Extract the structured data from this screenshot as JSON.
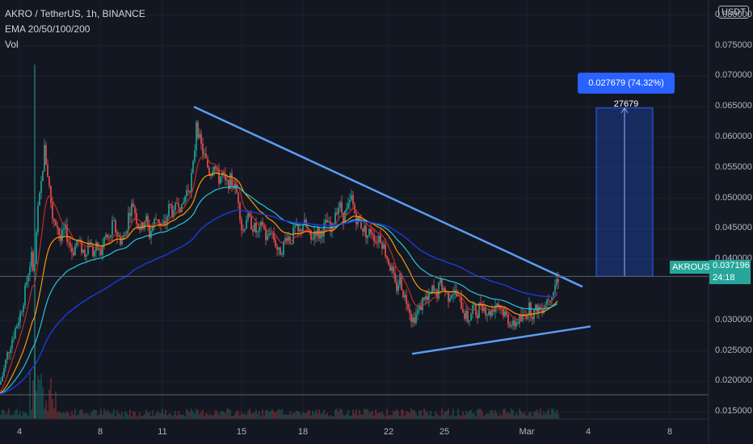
{
  "legend": {
    "symbol_line": "AKRO / TetherUS, 1h, BINANCE",
    "indicator_line": "EMA 20/50/100/200",
    "volume_line": "Vol"
  },
  "price_axis": {
    "currency": "USDT",
    "labels": [
      "0.080000",
      "0.075000",
      "0.070000",
      "0.065000",
      "0.060000",
      "0.055000",
      "0.050000",
      "0.045000",
      "0.040000",
      "0.030000",
      "0.025000",
      "0.020000",
      "0.015000"
    ]
  },
  "time_axis": {
    "labels": [
      "4",
      "8",
      "11",
      "15",
      "18",
      "22",
      "25",
      "Mar",
      "4",
      "8"
    ]
  },
  "last_price": {
    "symbol": "AKROUSDT",
    "value": "0.037196",
    "countdown": "24:18",
    "color": "#26a69a"
  },
  "measure": {
    "label": "0.027679 (74.32%) 27679",
    "color": "#2962ff"
  },
  "colors": {
    "background": "#131722",
    "up": "#26a69a",
    "down": "#ef5350",
    "trendline": "#5b9cf6",
    "ema20": "#c62828",
    "ema50": "#ff9800",
    "ema100": "#26c6da",
    "ema200": "#1e3ad8"
  },
  "chart_data": {
    "type": "candlestick",
    "title": "AKRO / TetherUS, 1h, BINANCE",
    "indicators": [
      "EMA 20/50/100/200",
      "Vol"
    ],
    "x_ticks": [
      "4",
      "8",
      "11",
      "15",
      "18",
      "22",
      "25",
      "Mar",
      "4",
      "8"
    ],
    "ylim": [
      0.0125,
      0.0825
    ],
    "y_scale": "linear",
    "close_path": [
      [
        0,
        0.0195
      ],
      [
        5,
        0.022
      ],
      [
        10,
        0.025
      ],
      [
        15,
        0.027
      ],
      [
        20,
        0.029
      ],
      [
        25,
        0.031
      ],
      [
        30,
        0.034
      ],
      [
        35,
        0.038
      ],
      [
        40,
        0.041
      ],
      [
        42,
        0.036
      ],
      [
        46,
        0.047
      ],
      [
        50,
        0.051
      ],
      [
        55,
        0.058
      ],
      [
        60,
        0.053
      ],
      [
        65,
        0.047
      ],
      [
        70,
        0.046
      ],
      [
        75,
        0.043
      ],
      [
        80,
        0.045
      ],
      [
        85,
        0.043
      ],
      [
        90,
        0.041
      ],
      [
        95,
        0.043
      ],
      [
        100,
        0.042
      ],
      [
        105,
        0.041
      ],
      [
        110,
        0.043
      ],
      [
        115,
        0.041
      ],
      [
        120,
        0.042
      ],
      [
        125,
        0.041
      ],
      [
        130,
        0.044
      ],
      [
        135,
        0.043
      ],
      [
        140,
        0.046
      ],
      [
        145,
        0.044
      ],
      [
        150,
        0.043
      ],
      [
        155,
        0.044
      ],
      [
        160,
        0.048
      ],
      [
        165,
        0.049
      ],
      [
        170,
        0.046
      ],
      [
        175,
        0.045
      ],
      [
        180,
        0.047
      ],
      [
        185,
        0.044
      ],
      [
        190,
        0.046
      ],
      [
        195,
        0.047
      ],
      [
        200,
        0.045
      ],
      [
        205,
        0.046
      ],
      [
        210,
        0.049
      ],
      [
        215,
        0.047
      ],
      [
        220,
        0.05
      ],
      [
        225,
        0.048
      ],
      [
        230,
        0.051
      ],
      [
        235,
        0.052
      ],
      [
        240,
        0.056
      ],
      [
        243,
        0.063
      ],
      [
        246,
        0.06
      ],
      [
        250,
        0.058
      ],
      [
        255,
        0.056
      ],
      [
        260,
        0.054
      ],
      [
        265,
        0.056
      ],
      [
        270,
        0.053
      ],
      [
        275,
        0.054
      ],
      [
        280,
        0.052
      ],
      [
        285,
        0.053
      ],
      [
        290,
        0.052
      ],
      [
        295,
        0.05
      ],
      [
        300,
        0.044
      ],
      [
        305,
        0.047
      ],
      [
        310,
        0.046
      ],
      [
        315,
        0.045
      ],
      [
        320,
        0.044
      ],
      [
        325,
        0.046
      ],
      [
        330,
        0.043
      ],
      [
        335,
        0.045
      ],
      [
        340,
        0.043
      ],
      [
        345,
        0.041
      ],
      [
        350,
        0.042
      ],
      [
        355,
        0.044
      ],
      [
        360,
        0.043
      ],
      [
        365,
        0.045
      ],
      [
        370,
        0.044
      ],
      [
        375,
        0.046
      ],
      [
        380,
        0.045
      ],
      [
        385,
        0.043
      ],
      [
        390,
        0.045
      ],
      [
        395,
        0.044
      ],
      [
        400,
        0.045
      ],
      [
        405,
        0.046
      ],
      [
        410,
        0.044
      ],
      [
        415,
        0.048
      ],
      [
        420,
        0.049
      ],
      [
        425,
        0.047
      ],
      [
        430,
        0.048
      ],
      [
        435,
        0.05
      ],
      [
        440,
        0.047
      ],
      [
        445,
        0.046
      ],
      [
        450,
        0.045
      ],
      [
        455,
        0.044
      ],
      [
        460,
        0.045
      ],
      [
        465,
        0.043
      ],
      [
        470,
        0.044
      ],
      [
        475,
        0.042
      ],
      [
        480,
        0.04
      ],
      [
        485,
        0.038
      ],
      [
        490,
        0.035
      ],
      [
        495,
        0.037
      ],
      [
        500,
        0.034
      ],
      [
        505,
        0.033
      ],
      [
        510,
        0.03
      ],
      [
        515,
        0.031
      ],
      [
        520,
        0.032
      ],
      [
        525,
        0.034
      ],
      [
        530,
        0.033
      ],
      [
        535,
        0.035
      ],
      [
        540,
        0.034
      ],
      [
        545,
        0.036
      ],
      [
        550,
        0.035
      ],
      [
        555,
        0.034
      ],
      [
        560,
        0.035
      ],
      [
        565,
        0.034
      ],
      [
        570,
        0.033
      ],
      [
        575,
        0.031
      ],
      [
        580,
        0.03
      ],
      [
        585,
        0.032
      ],
      [
        590,
        0.031
      ],
      [
        595,
        0.033
      ],
      [
        600,
        0.032
      ],
      [
        605,
        0.031
      ],
      [
        610,
        0.032
      ],
      [
        615,
        0.033
      ],
      [
        620,
        0.032
      ],
      [
        625,
        0.031
      ],
      [
        630,
        0.03
      ],
      [
        635,
        0.029
      ],
      [
        640,
        0.03
      ],
      [
        645,
        0.03
      ],
      [
        650,
        0.031
      ],
      [
        655,
        0.032
      ],
      [
        660,
        0.031
      ],
      [
        665,
        0.032
      ],
      [
        670,
        0.032
      ],
      [
        675,
        0.033
      ],
      [
        680,
        0.034
      ],
      [
        685,
        0.035
      ],
      [
        690,
        0.037
      ]
    ],
    "trendlines": [
      {
        "name": "upper",
        "points": [
          [
            240,
            0.065
          ],
          [
            721,
            0.0355
          ]
        ]
      },
      {
        "name": "lower",
        "points": [
          [
            510,
            0.0245
          ],
          [
            731,
            0.029
          ]
        ]
      }
    ],
    "horizontal_lines": [
      0.0372,
      0.0178
    ],
    "measure_box": {
      "x": [
        738,
        808
      ],
      "y": [
        0.0372,
        0.0648
      ],
      "label": "0.027679 (74.32%) 27679"
    },
    "last": 0.037196
  }
}
